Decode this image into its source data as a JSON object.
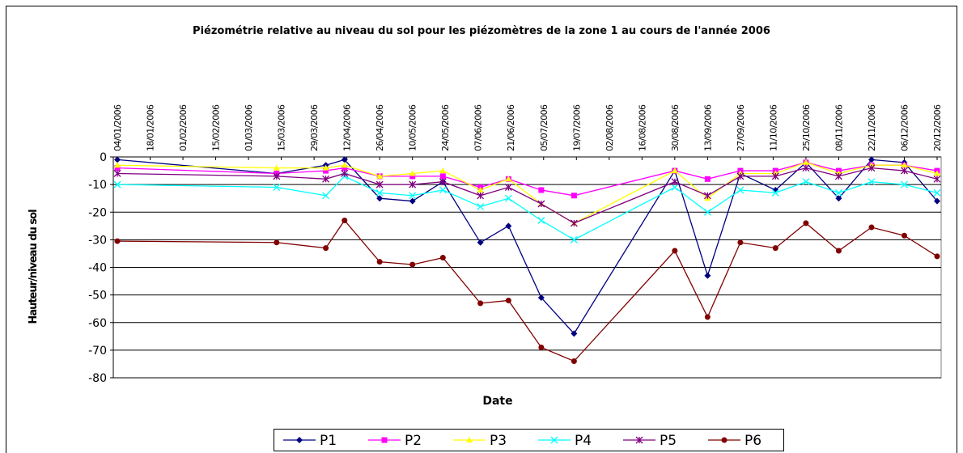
{
  "chart_data": {
    "type": "line",
    "title": "Piézométrie relative au niveau du sol pour les piézomètres de la zone 1 au cours de l'année 2006",
    "xlabel": "Date",
    "ylabel": "Hauteur/niveau du sol",
    "x": [
      "04/01/2006",
      "13/03/2006",
      "03/04/2006",
      "11/04/2006",
      "26/04/2006",
      "10/05/2006",
      "23/05/2006",
      "08/06/2006",
      "20/06/2006",
      "04/07/2006",
      "18/07/2006",
      "30/08/2006",
      "13/09/2006",
      "27/09/2006",
      "12/10/2006",
      "25/10/2006",
      "08/11/2006",
      "22/11/2006",
      "06/12/2006",
      "20/12/2006"
    ],
    "xlim": [
      "04/01/2006",
      "20/12/2006"
    ],
    "xticks": [
      "04/01/2006",
      "18/01/2006",
      "01/02/2006",
      "15/02/2006",
      "01/03/2006",
      "15/03/2006",
      "29/03/2006",
      "12/04/2006",
      "26/04/2006",
      "10/05/2006",
      "24/05/2006",
      "07/06/2006",
      "21/06/2006",
      "05/07/2006",
      "19/07/2006",
      "02/08/2006",
      "16/08/2006",
      "30/08/2006",
      "13/09/2006",
      "27/09/2006",
      "11/10/2006",
      "25/10/2006",
      "08/11/2006",
      "22/11/2006",
      "06/12/2006",
      "20/12/2006"
    ],
    "ylim": [
      -80,
      0
    ],
    "yticks": [
      0,
      -10,
      -20,
      -30,
      -40,
      -50,
      -60,
      -70,
      -80
    ],
    "grid": true,
    "legend": "bottom",
    "series": [
      {
        "name": "P1",
        "color": "#000080",
        "marker": "diamond",
        "values": [
          -1,
          -6,
          -3,
          -1,
          -15,
          -16,
          -9,
          -31,
          -25,
          -51,
          -64,
          -5,
          -43,
          -6,
          -12,
          -2,
          -15,
          -1,
          -2,
          -16
        ]
      },
      {
        "name": "P2",
        "color": "#ff00ff",
        "marker": "square",
        "values": [
          -4,
          -6,
          -5,
          -4,
          -7,
          -7,
          -7,
          -11,
          -8,
          -12,
          -14,
          -5,
          -8,
          -5,
          -5,
          -2,
          -5,
          -3,
          -3,
          -5
        ]
      },
      {
        "name": "P3",
        "color": "#ffff00",
        "marker": "triangle",
        "values": [
          -3,
          -4,
          -4,
          -3,
          -7,
          -6,
          -5,
          -12,
          -8,
          -17,
          -24,
          -5,
          -15,
          -6,
          -6,
          -2,
          -6,
          -3,
          -3,
          -6
        ]
      },
      {
        "name": "P4",
        "color": "#00ffff",
        "marker": "x",
        "values": [
          -10,
          -11,
          -14,
          -7,
          -13,
          -14,
          -12,
          -18,
          -15,
          -23,
          -30,
          -11,
          -20,
          -12,
          -13,
          -9,
          -13,
          -9,
          -10,
          -13
        ]
      },
      {
        "name": "P5",
        "color": "#800080",
        "marker": "star",
        "values": [
          -6,
          -7,
          -8,
          -6,
          -10,
          -10,
          -9,
          -14,
          -11,
          -17,
          -24,
          -9,
          -14,
          -7,
          -7,
          -4,
          -7,
          -4,
          -5,
          -8
        ]
      },
      {
        "name": "P6",
        "color": "#800000",
        "marker": "circle",
        "values": [
          -30.5,
          -31,
          -33,
          -23,
          -38,
          -39,
          -36.5,
          -53,
          -52,
          -69,
          -74,
          -34,
          -58,
          -31,
          -33,
          -24,
          -34,
          -25.5,
          -28.5,
          -36
        ]
      }
    ]
  }
}
